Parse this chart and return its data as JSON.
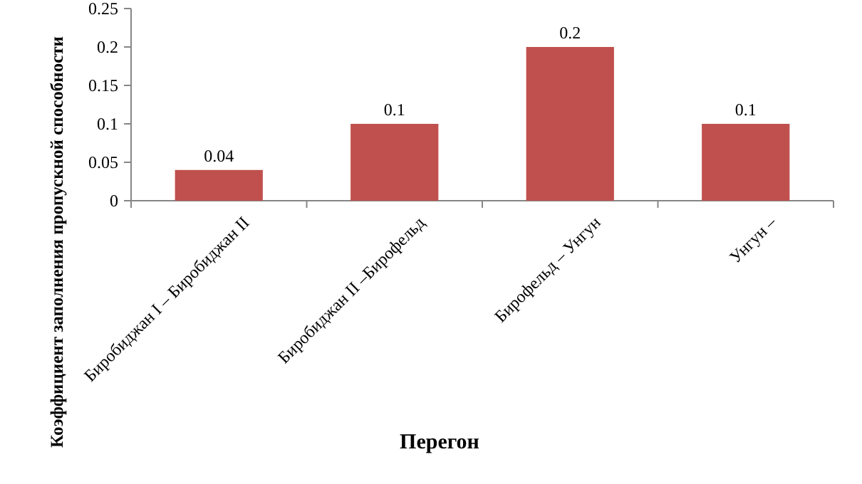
{
  "chart_data": {
    "type": "bar",
    "xlabel": "Перегон",
    "ylabel": "Коэффициент заполнения пропускной способности",
    "categories": [
      "Биробиджан I – Биробиджан II",
      "Биробиджан II –Бирофельд",
      "Бирофельд – Унгун",
      "Унгун –"
    ],
    "values": [
      0.04,
      0.1,
      0.2,
      0.1
    ],
    "color": "#c0504d",
    "data_labels": true,
    "ylim": [
      0,
      0.25
    ],
    "yticks": [
      0,
      0.05,
      0.1,
      0.15,
      0.2,
      0.25
    ],
    "grid": false
  }
}
